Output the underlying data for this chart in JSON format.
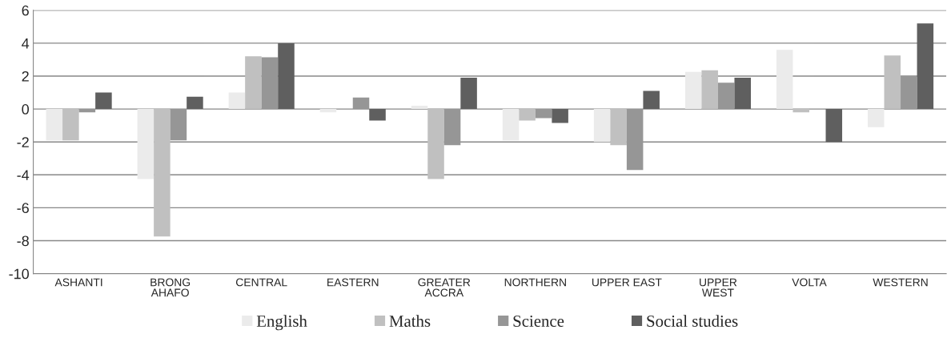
{
  "chart_data": {
    "type": "bar",
    "categories": [
      "ASHANTI",
      "BRONG\nAHAFO",
      "CENTRAL",
      "EASTERN",
      "GREATER\nACCRA",
      "NORTHERN",
      "UPPER EAST",
      "UPPER\nWEST",
      "VOLTA",
      "WESTERN"
    ],
    "series": [
      {
        "name": "English",
        "color": "#ebebeb",
        "values": [
          -1.9,
          -4.25,
          1.0,
          -0.2,
          0.2,
          -1.9,
          -2.0,
          2.25,
          3.6,
          -1.1
        ]
      },
      {
        "name": "Maths",
        "color": "#c0c0c0",
        "values": [
          -1.9,
          -7.75,
          3.2,
          0,
          -4.25,
          -0.7,
          -2.2,
          2.35,
          -0.2,
          3.25
        ]
      },
      {
        "name": "Science",
        "color": "#969696",
        "values": [
          -0.2,
          -1.9,
          3.15,
          0.7,
          -2.2,
          -0.55,
          -3.7,
          1.6,
          0,
          2.0
        ]
      },
      {
        "name": "Social studies",
        "color": "#5f5f5f",
        "values": [
          1.0,
          0.75,
          4.0,
          -0.7,
          1.9,
          -0.85,
          1.1,
          1.9,
          -2.0,
          5.2
        ]
      }
    ],
    "ylim": [
      -10,
      6
    ],
    "yticks": [
      -10,
      -8,
      -6,
      -4,
      -2,
      0,
      2,
      4,
      6
    ],
    "grid": "y",
    "legend": "bottom"
  }
}
